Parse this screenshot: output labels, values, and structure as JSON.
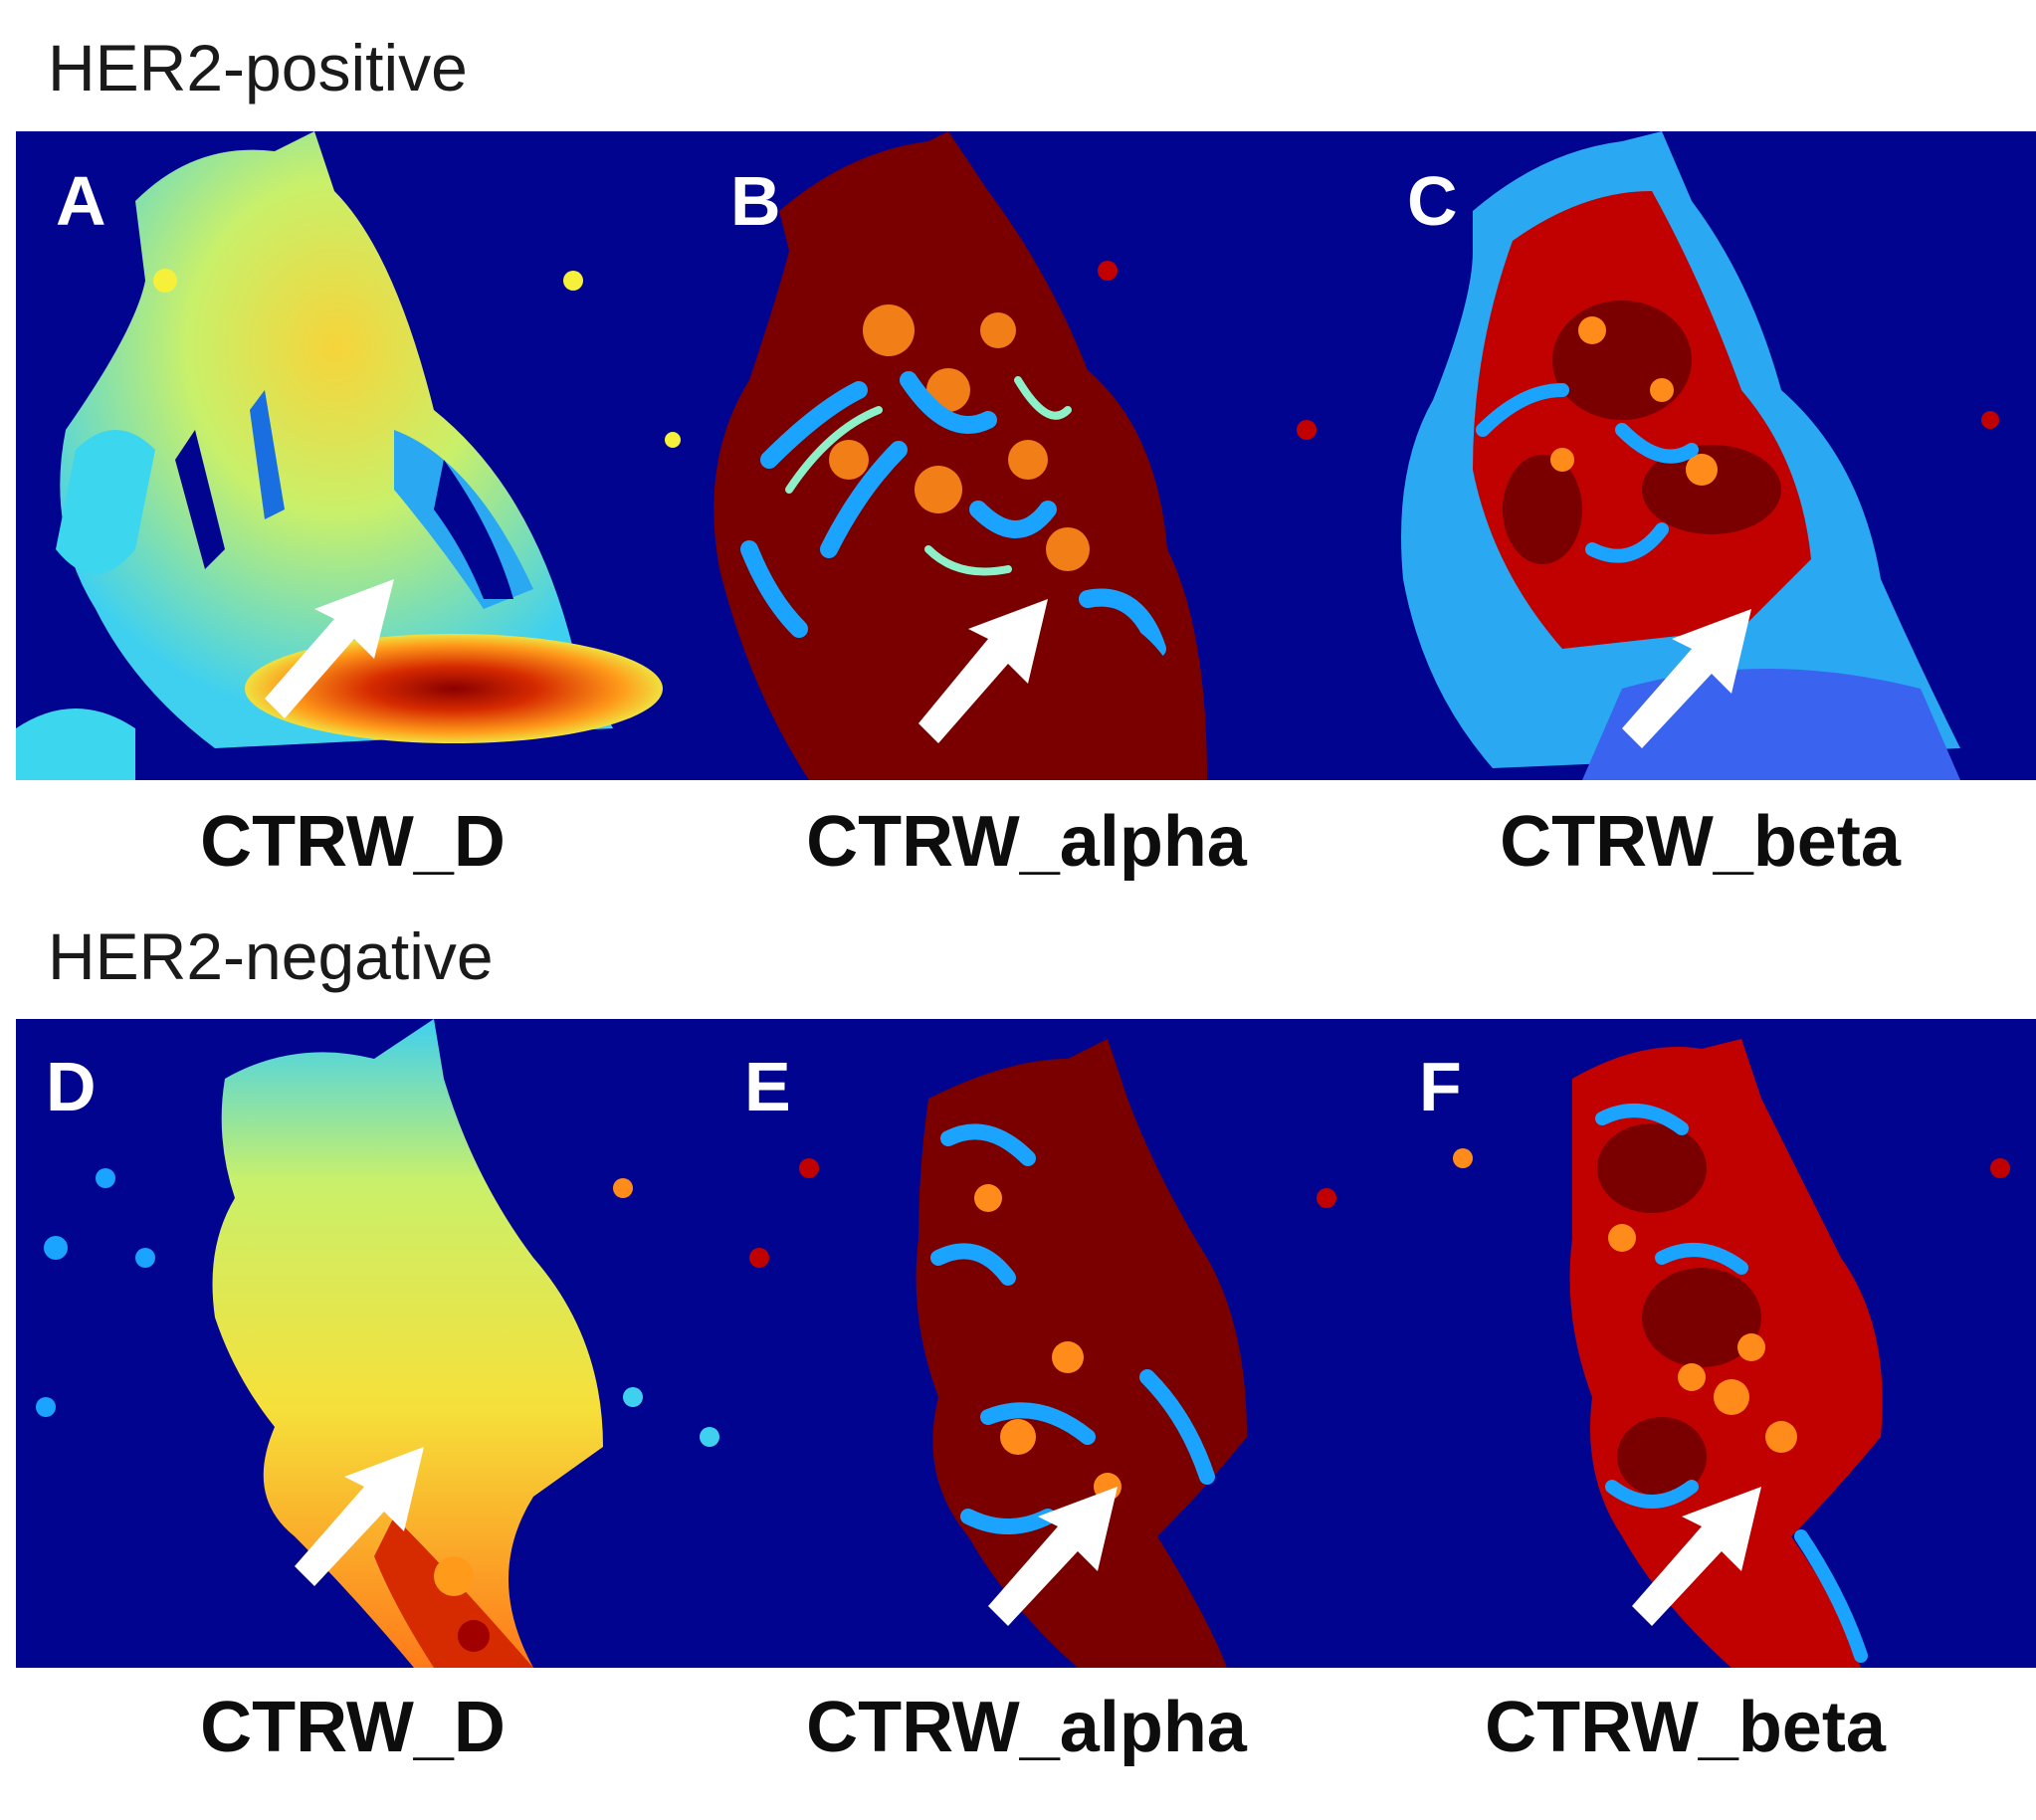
{
  "figure": {
    "groups": [
      {
        "title": "HER2-positive",
        "panels": [
          {
            "letter": "A",
            "map": "CTRW_D"
          },
          {
            "letter": "B",
            "map": "CTRW_alpha"
          },
          {
            "letter": "C",
            "map": "CTRW_beta"
          }
        ]
      },
      {
        "title": "HER2-negative",
        "panels": [
          {
            "letter": "D",
            "map": "CTRW_D"
          },
          {
            "letter": "E",
            "map": "CTRW_alpha"
          },
          {
            "letter": "F",
            "map": "CTRW_beta"
          }
        ]
      }
    ],
    "colors": {
      "background": "#01048f",
      "low": "#1aa3ff",
      "mid": "#8ef0c8",
      "yellow": "#f6f03a",
      "orange": "#ff8c1a",
      "high": "#c10000",
      "max": "#7a0000",
      "arrow": "#ffffff"
    }
  }
}
